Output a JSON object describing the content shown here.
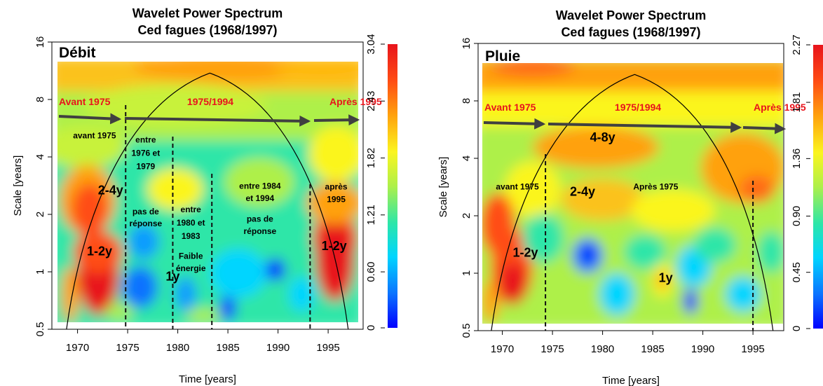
{
  "chart_data": [
    {
      "type": "heatmap",
      "title": "Wavelet Power Spectrum",
      "subtitle": "Ced fagues (1968/1997)",
      "panel_label": "Débit",
      "xlabel": "Time [years]",
      "ylabel": "Scale [years]",
      "xlim": [
        1968,
        1998
      ],
      "xticks": [
        "1970",
        "1975",
        "1980",
        "1985",
        "1990",
        "1995"
      ],
      "ylim": [
        0.5,
        16
      ],
      "yscale": "log2",
      "yticks": [
        "0.5",
        "1",
        "2",
        "4",
        "8",
        "16"
      ],
      "colorbar_ticks": [
        "0",
        "0.60",
        "1.21",
        "1.82",
        "2.43",
        "3.04"
      ],
      "colorbar_range": [
        0,
        3.04
      ],
      "cone_peak": {
        "x": 1983.2,
        "y": 11
      },
      "period_labels": [
        "Avant 1975",
        "1975/1994",
        "Après 1995"
      ],
      "dashed_lines_x": [
        1974.8,
        1979.5,
        1983.4,
        1993.2
      ],
      "annotations": [
        {
          "text": "avant 1975",
          "x": 1971.7,
          "y": 5.0
        },
        {
          "text": "entre",
          "x": 1976.8,
          "y": 4.75
        },
        {
          "text": "1976 et",
          "x": 1976.8,
          "y": 4.05
        },
        {
          "text": "1979",
          "x": 1976.8,
          "y": 3.45
        },
        {
          "text": "entre",
          "x": 1981.3,
          "y": 2.05
        },
        {
          "text": "1980 et",
          "x": 1981.3,
          "y": 1.75
        },
        {
          "text": "1983",
          "x": 1981.3,
          "y": 1.49
        },
        {
          "text": "Faible",
          "x": 1981.3,
          "y": 1.17
        },
        {
          "text": "énergie",
          "x": 1981.3,
          "y": 1.01
        },
        {
          "text": "pas de",
          "x": 1976.8,
          "y": 2.0
        },
        {
          "text": "réponse",
          "x": 1976.8,
          "y": 1.73
        },
        {
          "text": "entre 1984",
          "x": 1988.2,
          "y": 2.72
        },
        {
          "text": "et 1994",
          "x": 1988.2,
          "y": 2.35
        },
        {
          "text": "pas de",
          "x": 1988.2,
          "y": 1.83
        },
        {
          "text": "réponse",
          "x": 1988.2,
          "y": 1.58
        },
        {
          "text": "après",
          "x": 1995.8,
          "y": 2.7
        },
        {
          "text": "1995",
          "x": 1995.8,
          "y": 2.32
        }
      ],
      "big_labels": [
        {
          "text": "2-4y",
          "x": 1973.3,
          "y": 2.55
        },
        {
          "text": "1-2y",
          "x": 1972.2,
          "y": 1.22
        },
        {
          "text": "1y",
          "x": 1979.5,
          "y": 0.9
        },
        {
          "text": "1-2y",
          "x": 1995.6,
          "y": 1.3
        }
      ]
    },
    {
      "type": "heatmap",
      "title": "Wavelet Power Spectrum",
      "subtitle": "Ced fagues (1968/1997)",
      "panel_label": "Pluie",
      "xlabel": "Time [years]",
      "ylabel": "Scale [years]",
      "xlim": [
        1968,
        1998
      ],
      "xticks": [
        "1970",
        "1975",
        "1980",
        "1985",
        "1990",
        "1995"
      ],
      "ylim": [
        0.5,
        16
      ],
      "yscale": "log2",
      "yticks": [
        "0.5",
        "1",
        "2",
        "4",
        "8",
        "16"
      ],
      "colorbar_ticks": [
        "0",
        "0.45",
        "0.90",
        "1.36",
        "1.81",
        "2.27"
      ],
      "colorbar_range": [
        0,
        2.27
      ],
      "cone_peak": {
        "x": 1983.2,
        "y": 11
      },
      "period_labels": [
        "Avant 1975",
        "1975/1994",
        "Après 1995"
      ],
      "dashed_lines_x": [
        1974.3,
        1995.0
      ],
      "annotations": [
        {
          "text": "avant 1975",
          "x": 1971.5,
          "y": 2.75
        },
        {
          "text": "Après 1975",
          "x": 1985.3,
          "y": 2.75
        }
      ],
      "big_labels": [
        {
          "text": "4-8y",
          "x": 1980.0,
          "y": 4.9
        },
        {
          "text": "2-4y",
          "x": 1978.0,
          "y": 2.55
        },
        {
          "text": "1-2y",
          "x": 1972.3,
          "y": 1.22
        },
        {
          "text": "1y",
          "x": 1986.3,
          "y": 0.9
        }
      ]
    }
  ],
  "colors": {
    "colorbar": [
      "#0000ff",
      "#0b72ff",
      "#00d5ff",
      "#2de6a8",
      "#aef04a",
      "#fbf51f",
      "#ffa10d",
      "#ff4d14",
      "#e8141c"
    ],
    "annotation_red": "#e8141c",
    "arrow": "#404040"
  }
}
